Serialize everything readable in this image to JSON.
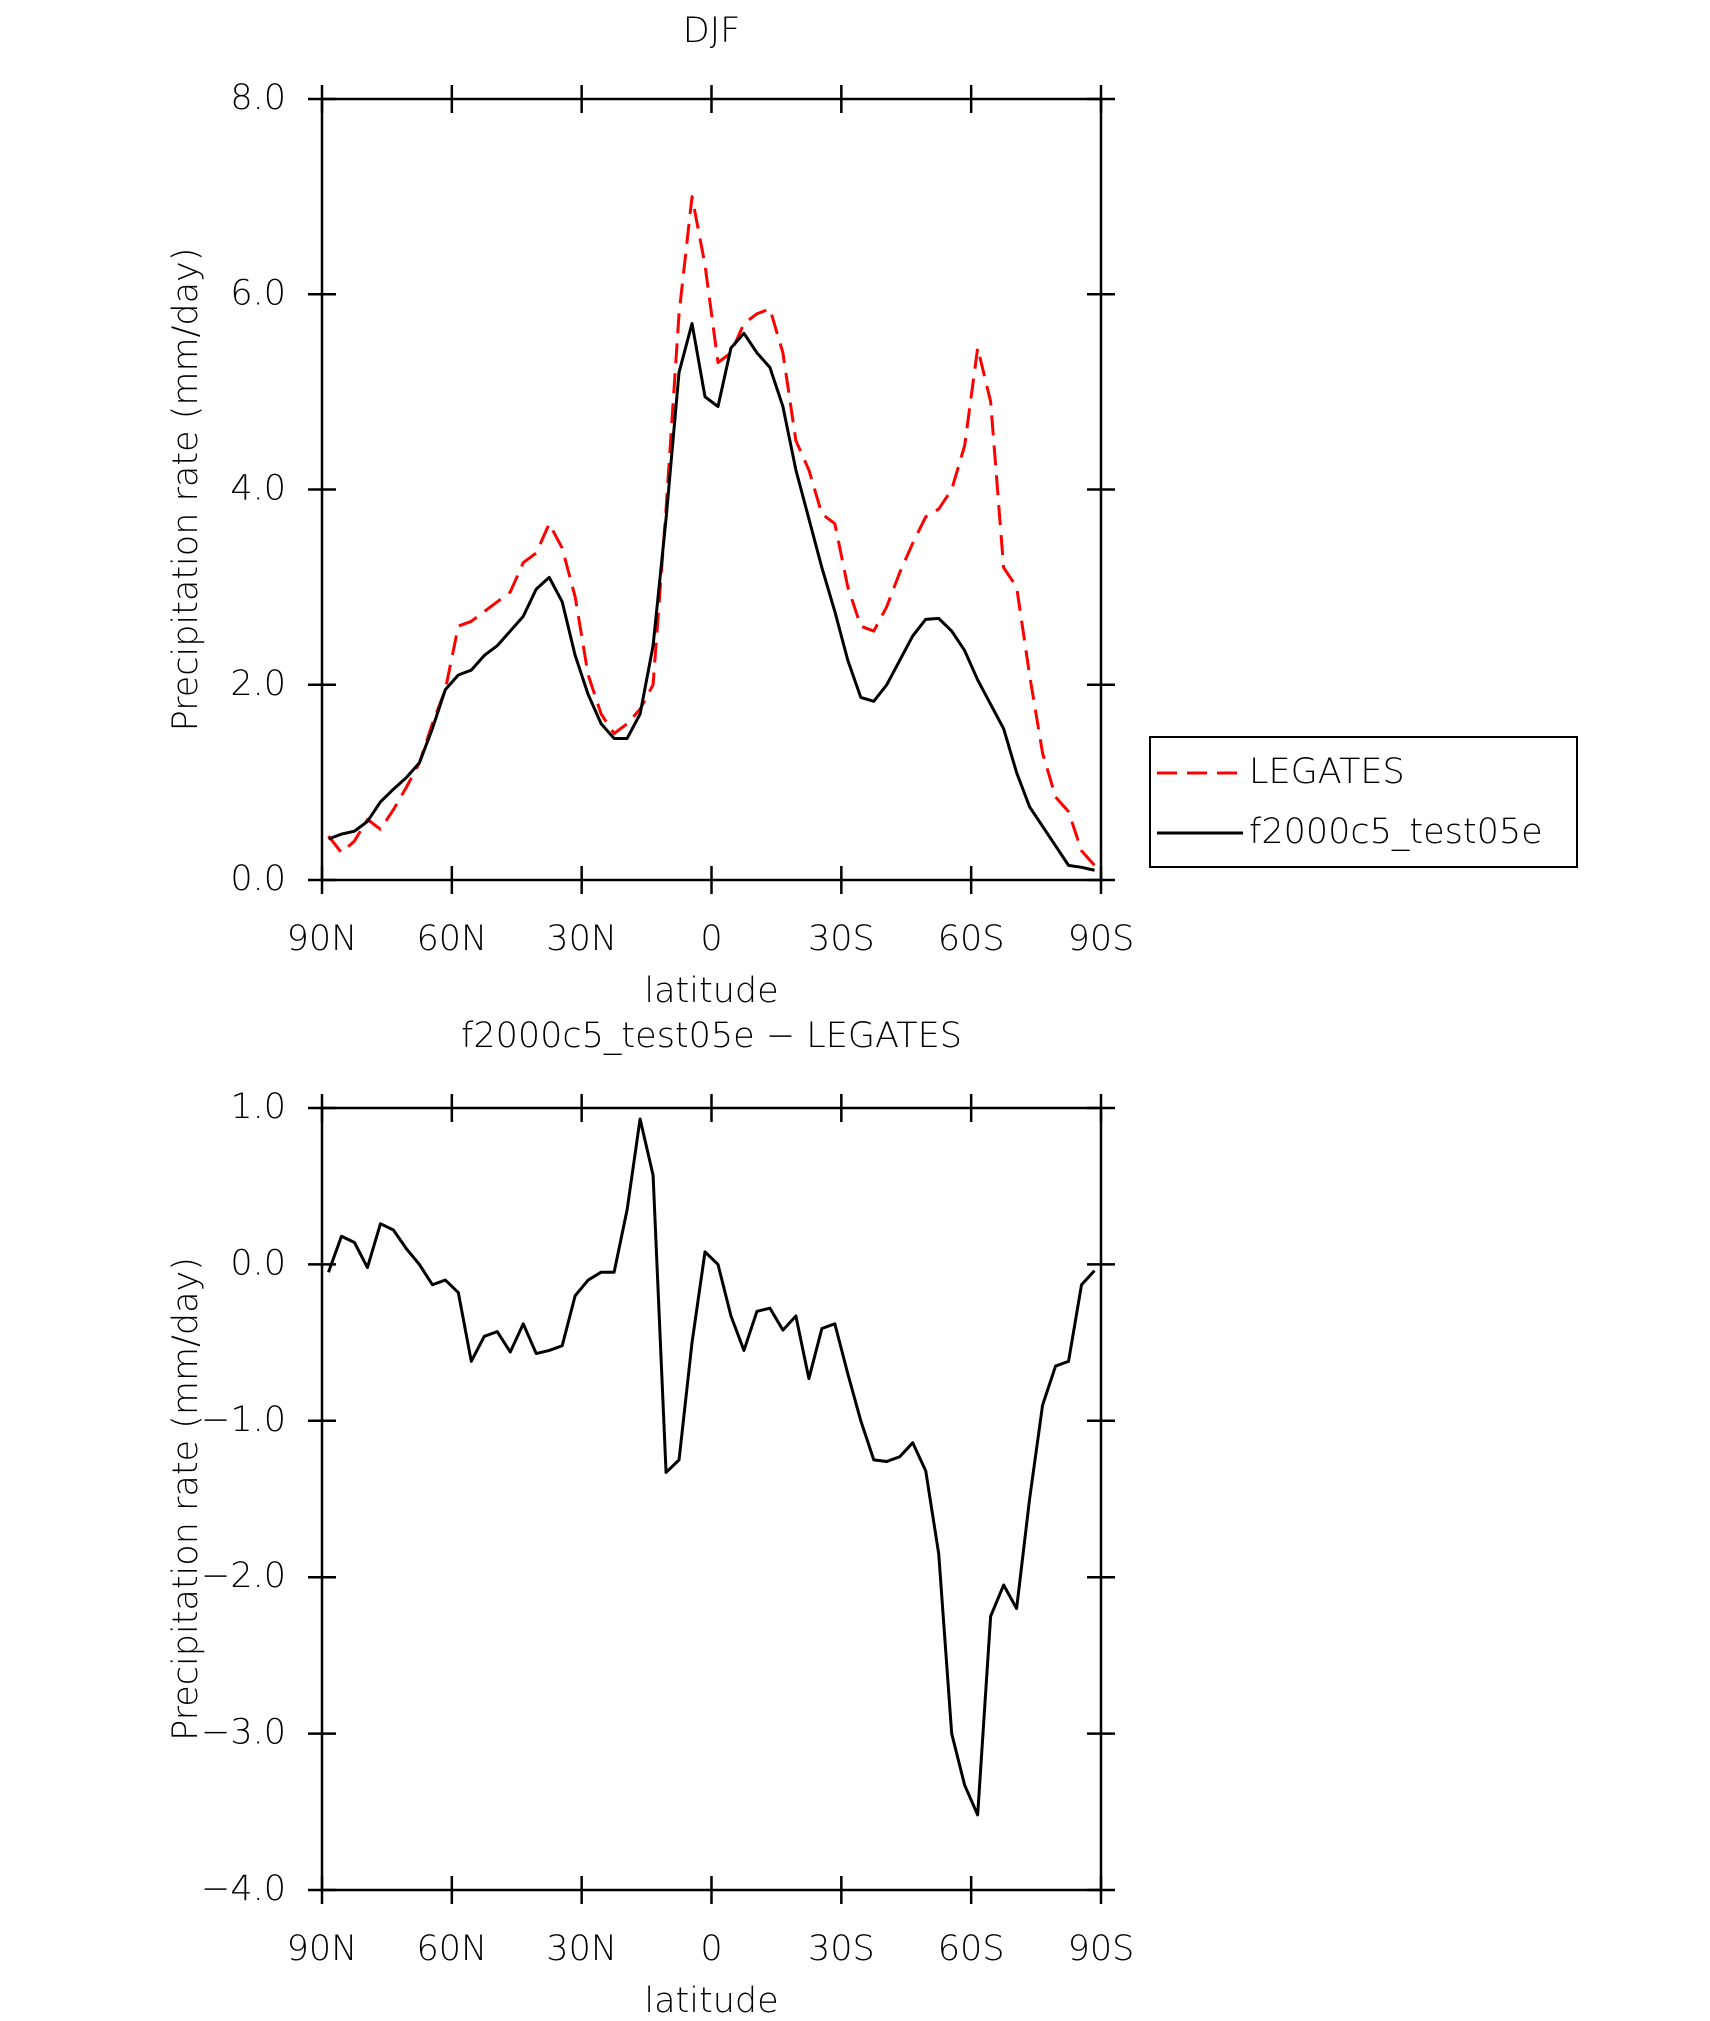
{
  "chart_data": [
    {
      "type": "line",
      "title": "DJF",
      "xlabel": "latitude",
      "ylabel": "Precipitation rate (mm/day)",
      "x": [
        88.5,
        85.5,
        82.5,
        79.5,
        76.5,
        73.5,
        70.5,
        67.5,
        64.5,
        61.5,
        58.5,
        55.5,
        52.5,
        49.5,
        46.5,
        43.5,
        40.5,
        37.5,
        34.5,
        31.5,
        28.5,
        25.5,
        22.5,
        19.5,
        16.5,
        13.5,
        10.5,
        7.5,
        4.5,
        1.5,
        -1.5,
        -4.5,
        -7.5,
        -10.5,
        -13.5,
        -16.5,
        -19.5,
        -22.5,
        -25.5,
        -28.5,
        -31.5,
        -34.5,
        -37.5,
        -40.5,
        -43.5,
        -46.5,
        -49.5,
        -52.5,
        -55.5,
        -58.5,
        -61.5,
        -64.5,
        -67.5,
        -70.5,
        -73.5,
        -76.5,
        -79.5,
        -82.5,
        -85.5,
        -88.5
      ],
      "xlim": [
        90,
        -90
      ],
      "xticks": [
        {
          "value": 90,
          "label": "90N"
        },
        {
          "value": 60,
          "label": "60N"
        },
        {
          "value": 30,
          "label": "30N"
        },
        0,
        {
          "value": -30,
          "label": "30S"
        },
        {
          "value": -60,
          "label": "60S"
        },
        {
          "value": -90,
          "label": "90S"
        }
      ],
      "ylim": [
        0,
        8
      ],
      "yticks": [
        {
          "value": 0,
          "label": "0.0"
        },
        {
          "value": 2,
          "label": "2.0"
        },
        {
          "value": 4,
          "label": "4.0"
        },
        {
          "value": 6,
          "label": "6.0"
        },
        {
          "value": 8,
          "label": "8.0"
        }
      ],
      "legend": "right",
      "series": [
        {
          "name": "LEGATES",
          "color": "#ff0000",
          "style": "dashed",
          "values": [
            0.45,
            0.28,
            0.4,
            0.62,
            0.52,
            0.72,
            0.95,
            1.2,
            1.6,
            1.95,
            2.6,
            2.65,
            2.75,
            2.85,
            2.95,
            3.25,
            3.35,
            3.65,
            3.4,
            2.9,
            2.1,
            1.7,
            1.5,
            1.6,
            1.75,
            2.0,
            3.8,
            5.8,
            7.0,
            6.3,
            5.3,
            5.4,
            5.7,
            5.8,
            5.85,
            5.4,
            4.5,
            4.2,
            3.75,
            3.65,
            3.0,
            2.6,
            2.55,
            2.8,
            3.15,
            3.45,
            3.72,
            3.8,
            4.0,
            4.45,
            5.45,
            4.9,
            3.2,
            3.0,
            2.1,
            1.3,
            0.85,
            0.7,
            0.3,
            0.15
          ]
        },
        {
          "name": "f2000c5_test05e",
          "color": "#000000",
          "style": "solid",
          "values": [
            0.42,
            0.47,
            0.5,
            0.6,
            0.8,
            0.93,
            1.05,
            1.2,
            1.55,
            1.95,
            2.1,
            2.15,
            2.3,
            2.4,
            2.55,
            2.7,
            2.98,
            3.1,
            2.85,
            2.3,
            1.9,
            1.6,
            1.45,
            1.45,
            1.7,
            2.4,
            3.7,
            5.2,
            5.7,
            4.95,
            4.85,
            5.45,
            5.6,
            5.4,
            5.25,
            4.85,
            4.2,
            3.7,
            3.2,
            2.75,
            2.25,
            1.87,
            1.83,
            2.0,
            2.25,
            2.5,
            2.67,
            2.68,
            2.55,
            2.35,
            2.05,
            1.8,
            1.55,
            1.1,
            0.75,
            0.55,
            0.35,
            0.15,
            0.13,
            0.1
          ]
        }
      ]
    },
    {
      "type": "line",
      "title": "f2000c5_test05e − LEGATES",
      "xlabel": "latitude",
      "ylabel": "Precipitation rate (mm/day)",
      "x": [
        88.5,
        85.5,
        82.5,
        79.5,
        76.5,
        73.5,
        70.5,
        67.5,
        64.5,
        61.5,
        58.5,
        55.5,
        52.5,
        49.5,
        46.5,
        43.5,
        40.5,
        37.5,
        34.5,
        31.5,
        28.5,
        25.5,
        22.5,
        19.5,
        16.5,
        13.5,
        10.5,
        7.5,
        4.5,
        1.5,
        -1.5,
        -4.5,
        -7.5,
        -10.5,
        -13.5,
        -16.5,
        -19.5,
        -22.5,
        -25.5,
        -28.5,
        -31.5,
        -34.5,
        -37.5,
        -40.5,
        -43.5,
        -46.5,
        -49.5,
        -52.5,
        -55.5,
        -58.5,
        -61.5,
        -64.5,
        -67.5,
        -70.5,
        -73.5,
        -76.5,
        -79.5,
        -82.5,
        -85.5,
        -88.5
      ],
      "xlim": [
        90,
        -90
      ],
      "xticks": [
        {
          "value": 90,
          "label": "90N"
        },
        {
          "value": 60,
          "label": "60N"
        },
        {
          "value": 30,
          "label": "30N"
        },
        0,
        {
          "value": -30,
          "label": "30S"
        },
        {
          "value": -60,
          "label": "60S"
        },
        {
          "value": -90,
          "label": "90S"
        }
      ],
      "ylim": [
        -4,
        1
      ],
      "yticks": [
        {
          "value": -4,
          "label": "−4.0"
        },
        {
          "value": -3,
          "label": "−3.0"
        },
        {
          "value": -2,
          "label": "−2.0"
        },
        {
          "value": -1,
          "label": "−1.0"
        },
        {
          "value": 0,
          "label": "0.0"
        },
        {
          "value": 1,
          "label": "1.0"
        }
      ],
      "series": [
        {
          "color": "#000000",
          "style": "solid",
          "values": [
            -0.05,
            0.18,
            0.14,
            -0.02,
            0.26,
            0.22,
            0.1,
            0.0,
            -0.13,
            -0.1,
            -0.18,
            -0.62,
            -0.46,
            -0.43,
            -0.56,
            -0.38,
            -0.57,
            -0.55,
            -0.52,
            -0.2,
            -0.1,
            -0.05,
            -0.05,
            0.35,
            0.93,
            0.57,
            -1.33,
            -1.25,
            -0.5,
            0.08,
            0.0,
            -0.33,
            -0.55,
            -0.3,
            -0.28,
            -0.42,
            -0.33,
            -0.73,
            -0.41,
            -0.38,
            -0.7,
            -1.0,
            -1.25,
            -1.26,
            -1.23,
            -1.14,
            -1.32,
            -1.85,
            -3.0,
            -3.33,
            -3.52,
            -2.25,
            -2.05,
            -2.2,
            -1.5,
            -0.9,
            -0.65,
            -0.62,
            -0.13,
            -0.04
          ]
        }
      ]
    }
  ]
}
